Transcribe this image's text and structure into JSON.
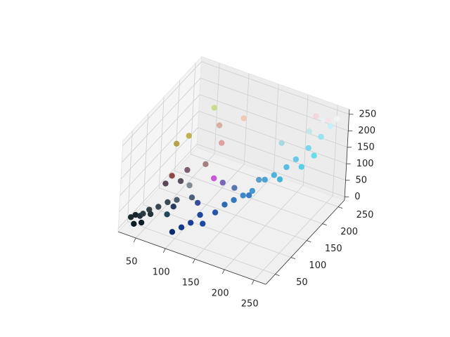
{
  "chart_data": {
    "type": "scatter3d",
    "xlim": [
      20,
      270
    ],
    "ylim": [
      20,
      270
    ],
    "zlim": [
      -10,
      265
    ],
    "xticks": [
      50,
      100,
      150,
      200,
      250
    ],
    "yticks": [
      50,
      100,
      150,
      200,
      250
    ],
    "zticks": [
      0,
      50,
      100,
      150,
      200,
      250
    ],
    "grid": true,
    "series": [
      {
        "x": [
          30,
          35,
          40,
          45,
          50,
          55,
          60,
          48,
          38,
          70,
          80,
          90,
          60,
          70,
          80,
          100,
          90,
          110,
          70,
          120,
          130,
          100,
          130,
          80,
          60,
          110,
          90,
          100,
          110,
          120,
          130,
          140,
          150,
          120,
          160,
          170,
          180,
          190,
          200,
          210,
          220,
          230,
          240,
          250,
          255,
          260,
          200,
          215,
          235,
          245,
          180,
          160,
          150,
          200,
          225,
          240,
          250,
          230
        ],
        "y": [
          40,
          45,
          50,
          50,
          60,
          55,
          70,
          40,
          35,
          80,
          60,
          70,
          120,
          140,
          200,
          180,
          100,
          120,
          90,
          150,
          110,
          90,
          200,
          100,
          90,
          80,
          60,
          40,
          50,
          60,
          70,
          60,
          80,
          80,
          90,
          100,
          110,
          120,
          140,
          150,
          170,
          180,
          200,
          220,
          240,
          250,
          120,
          160,
          190,
          210,
          130,
          120,
          100,
          190,
          230,
          245,
          240,
          240
        ],
        "z": [
          20,
          25,
          20,
          30,
          35,
          30,
          40,
          15,
          10,
          50,
          40,
          80,
          180,
          190,
          220,
          200,
          140,
          150,
          120,
          190,
          130,
          110,
          220,
          100,
          90,
          90,
          70,
          20,
          30,
          40,
          60,
          50,
          70,
          80,
          90,
          100,
          110,
          120,
          140,
          150,
          160,
          180,
          200,
          220,
          235,
          250,
          160,
          130,
          150,
          170,
          90,
          110,
          140,
          200,
          210,
          240,
          250,
          250
        ],
        "colors": [
          "#1c2a30",
          "#17252b",
          "#222f36",
          "#2a3a40",
          "#333d44",
          "#26343a",
          "#3a4650",
          "#0f1e26",
          "#0c1a22",
          "#3c4a55",
          "#23485a",
          "#4a5a66",
          "#b5a24a",
          "#c4b050",
          "#c8dc90",
          "#d8b0a0",
          "#7a6070",
          "#a08080",
          "#8a4a48",
          "#e0a0a0",
          "#c858d8",
          "#808a90",
          "#f0c8b8",
          "#5a5060",
          "#5a4858",
          "#50607a",
          "#2a3a5a",
          "#0a2a6e",
          "#113a8a",
          "#1a3f95",
          "#20479c",
          "#1c4aa0",
          "#2756a8",
          "#3a4d9c",
          "#2d6bb4",
          "#3578bd",
          "#3d89c6",
          "#4396cf",
          "#4aa3d6",
          "#52b0dc",
          "#5cbde2",
          "#6ac8e8",
          "#7dd5ee",
          "#9ae2f2",
          "#c6f0f6",
          "#f0f4f6",
          "#5a9ed0",
          "#48b6d8",
          "#56d0e6",
          "#66dde8",
          "#3b7cc0",
          "#5a78b0",
          "#7a68b8",
          "#aad8e0",
          "#c0e8e8",
          "#e8f0f2",
          "#f4e4ea",
          "#f0d8dc"
        ]
      }
    ]
  }
}
